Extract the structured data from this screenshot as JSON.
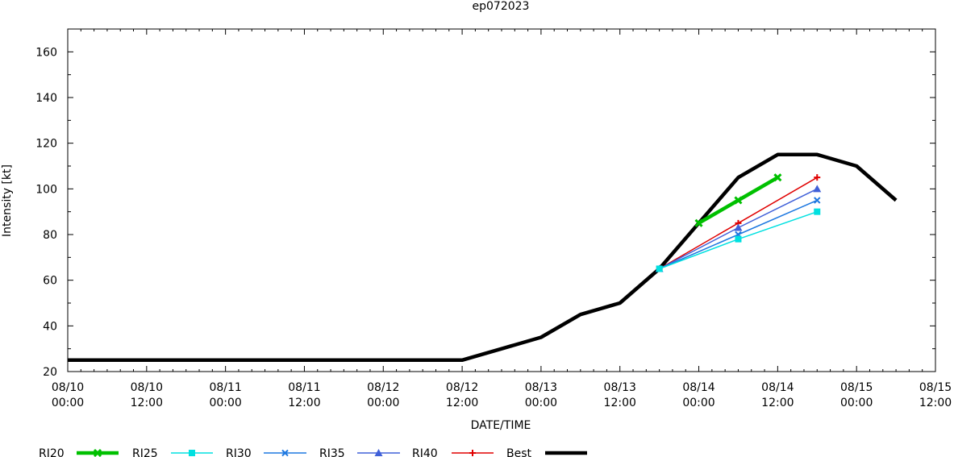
{
  "chart_data": {
    "type": "line",
    "title": "ep072023",
    "xlabel": "DATE/TIME",
    "ylabel": "Intensity [kt]",
    "x_unit": "date-time",
    "xlim": [
      "2023-08-10 00:00",
      "2023-08-15 12:00"
    ],
    "ylim": [
      20,
      170
    ],
    "yticks": [
      20,
      40,
      60,
      80,
      100,
      120,
      140,
      160
    ],
    "xticks": [
      {
        "t": "2023-08-10 00:00",
        "label": [
          "08/10",
          "00:00"
        ]
      },
      {
        "t": "2023-08-10 12:00",
        "label": [
          "08/10",
          "12:00"
        ]
      },
      {
        "t": "2023-08-11 00:00",
        "label": [
          "08/11",
          "00:00"
        ]
      },
      {
        "t": "2023-08-11 12:00",
        "label": [
          "08/11",
          "12:00"
        ]
      },
      {
        "t": "2023-08-12 00:00",
        "label": [
          "08/12",
          "00:00"
        ]
      },
      {
        "t": "2023-08-12 12:00",
        "label": [
          "08/12",
          "12:00"
        ]
      },
      {
        "t": "2023-08-13 00:00",
        "label": [
          "08/13",
          "00:00"
        ]
      },
      {
        "t": "2023-08-13 12:00",
        "label": [
          "08/13",
          "12:00"
        ]
      },
      {
        "t": "2023-08-14 00:00",
        "label": [
          "08/14",
          "00:00"
        ]
      },
      {
        "t": "2023-08-14 12:00",
        "label": [
          "08/14",
          "12:00"
        ]
      },
      {
        "t": "2023-08-15 00:00",
        "label": [
          "08/15",
          "00:00"
        ]
      },
      {
        "t": "2023-08-15 12:00",
        "label": [
          "08/15",
          "12:00"
        ]
      }
    ],
    "legend_position": "bottom",
    "series": [
      {
        "name": "RI20",
        "color": "#00c000",
        "marker": "x-bold",
        "points": [
          [
            "2023-08-14 00:00",
            85
          ],
          [
            "2023-08-14 06:00",
            95
          ],
          [
            "2023-08-14 12:00",
            105
          ]
        ]
      },
      {
        "name": "RI25",
        "color": "#00e0e0",
        "marker": "square",
        "points": [
          [
            "2023-08-13 18:00",
            65
          ],
          [
            "2023-08-14 06:00",
            78
          ],
          [
            "2023-08-14 18:00",
            90
          ]
        ]
      },
      {
        "name": "RI30",
        "color": "#1e78e0",
        "marker": "x",
        "points": [
          [
            "2023-08-13 18:00",
            65
          ],
          [
            "2023-08-14 06:00",
            80
          ],
          [
            "2023-08-14 18:00",
            95
          ]
        ]
      },
      {
        "name": "RI35",
        "color": "#4060d8",
        "marker": "triangle",
        "points": [
          [
            "2023-08-13 18:00",
            65
          ],
          [
            "2023-08-14 06:00",
            83
          ],
          [
            "2023-08-14 18:00",
            100
          ]
        ]
      },
      {
        "name": "RI40",
        "color": "#e00000",
        "marker": "plus",
        "points": [
          [
            "2023-08-13 18:00",
            65
          ],
          [
            "2023-08-14 06:00",
            85
          ],
          [
            "2023-08-14 18:00",
            105
          ]
        ]
      },
      {
        "name": "Best",
        "color": "#000000",
        "marker": "none",
        "points": [
          [
            "2023-08-10 00:00",
            25
          ],
          [
            "2023-08-10 06:00",
            25
          ],
          [
            "2023-08-10 12:00",
            25
          ],
          [
            "2023-08-10 18:00",
            25
          ],
          [
            "2023-08-11 00:00",
            25
          ],
          [
            "2023-08-11 06:00",
            25
          ],
          [
            "2023-08-11 12:00",
            25
          ],
          [
            "2023-08-11 18:00",
            25
          ],
          [
            "2023-08-12 00:00",
            25
          ],
          [
            "2023-08-12 06:00",
            25
          ],
          [
            "2023-08-12 12:00",
            25
          ],
          [
            "2023-08-12 18:00",
            30
          ],
          [
            "2023-08-13 00:00",
            35
          ],
          [
            "2023-08-13 06:00",
            45
          ],
          [
            "2023-08-13 12:00",
            50
          ],
          [
            "2023-08-13 18:00",
            65
          ],
          [
            "2023-08-14 00:00",
            85
          ],
          [
            "2023-08-14 06:00",
            105
          ],
          [
            "2023-08-14 12:00",
            115
          ],
          [
            "2023-08-14 18:00",
            115
          ],
          [
            "2023-08-15 00:00",
            110
          ],
          [
            "2023-08-15 06:00",
            95
          ]
        ]
      }
    ],
    "legend": [
      {
        "label": "RI20",
        "series": "RI20"
      },
      {
        "label": "RI25",
        "series": "RI25"
      },
      {
        "label": "RI30",
        "series": "RI30"
      },
      {
        "label": "RI35",
        "series": "RI35"
      },
      {
        "label": "RI40",
        "series": "RI40"
      },
      {
        "label": "Best",
        "series": "Best"
      }
    ]
  }
}
